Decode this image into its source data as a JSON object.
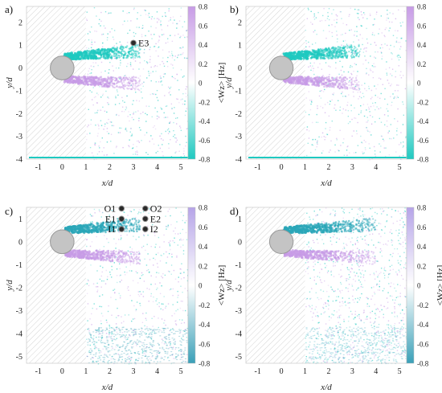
{
  "chart_data": [
    {
      "type": "heatmap",
      "panel_label": "a)",
      "xlabel": "x/d",
      "ylabel": "y/d",
      "xlim": [
        -1.5,
        5.3
      ],
      "ylim": [
        -4,
        2.7
      ],
      "xticks": [
        -1,
        0,
        1,
        2,
        3,
        4,
        5
      ],
      "yticks": [
        -4,
        -3,
        -2,
        -1,
        0,
        1,
        2
      ],
      "colorbar": {
        "label": "<Wz> [Hz]",
        "range": [
          -0.8,
          0.8
        ],
        "ticks": [
          "0.8",
          "0.6",
          "0.4",
          "0.2",
          "0",
          "-0.2",
          "-0.4",
          "-0.6",
          "-0.8"
        ]
      },
      "cylinder": {
        "x": 0,
        "y": 0,
        "radius": 0.5
      },
      "points": [
        {
          "label": "E3",
          "x": 3.0,
          "y": 1.1
        }
      ]
    },
    {
      "type": "heatmap",
      "panel_label": "b)",
      "xlabel": "x/d",
      "ylabel": "y/d",
      "xlim": [
        -1.5,
        5.3
      ],
      "ylim": [
        -4,
        2.7
      ],
      "xticks": [
        -1,
        0,
        1,
        2,
        3,
        4,
        5
      ],
      "yticks": [
        -4,
        -3,
        -2,
        -1,
        0,
        1,
        2
      ],
      "colorbar": {
        "label": "",
        "range": [
          -0.8,
          0.8
        ],
        "ticks": [
          "0.8",
          "0.6",
          "0.4",
          "0.2",
          "0",
          "-0.2",
          "-0.4",
          "-0.6",
          "-0.8"
        ]
      },
      "cylinder": {
        "x": 0,
        "y": 0,
        "radius": 0.5
      },
      "points": []
    },
    {
      "type": "heatmap",
      "panel_label": "c)",
      "xlabel": "x/d",
      "ylabel": "y/d",
      "xlim": [
        -1.5,
        5.3
      ],
      "ylim": [
        -5.3,
        1.5
      ],
      "xticks": [
        -1,
        0,
        1,
        2,
        3,
        4,
        5
      ],
      "yticks": [
        -5,
        -4,
        -3,
        -2,
        -1,
        0,
        1
      ],
      "colorbar": {
        "label": "<Wz> [Hz]",
        "range": [
          -0.8,
          0.8
        ],
        "ticks": [
          "0.8",
          "0.6",
          "0.4",
          "0.2",
          "0",
          "-0.2",
          "-0.4",
          "-0.6",
          "-0.8"
        ]
      },
      "cylinder": {
        "x": 0,
        "y": 0,
        "radius": 0.5
      },
      "points": [
        {
          "label": "O1",
          "x": 2.5,
          "y": 1.45
        },
        {
          "label": "E1",
          "x": 2.5,
          "y": 1.0
        },
        {
          "label": "I1",
          "x": 2.5,
          "y": 0.55
        },
        {
          "label": "O2",
          "x": 3.5,
          "y": 1.45
        },
        {
          "label": "E2",
          "x": 3.5,
          "y": 1.0
        },
        {
          "label": "I2",
          "x": 3.5,
          "y": 0.55
        }
      ]
    },
    {
      "type": "heatmap",
      "panel_label": "d)",
      "xlabel": "x/d",
      "ylabel": "y/d",
      "xlim": [
        -1.5,
        5.3
      ],
      "ylim": [
        -5.3,
        1.5
      ],
      "xticks": [
        -1,
        0,
        1,
        2,
        3,
        4,
        5
      ],
      "yticks": [
        -5,
        -4,
        -3,
        -2,
        -1,
        0,
        1
      ],
      "colorbar": {
        "label": "<Wz> [Hz]",
        "range": [
          -0.8,
          0.8
        ],
        "ticks": [
          "0.8",
          "0.6",
          "0.4",
          "0.2",
          "0",
          "-0.2",
          "-0.4",
          "-0.6",
          "-0.8"
        ]
      },
      "cylinder": {
        "x": 0,
        "y": 0,
        "radius": 0.5
      },
      "points": []
    }
  ],
  "colors": {
    "positive": "#c79be6",
    "negative": "#1fc9c0",
    "neutral": "#ffffff",
    "cylinder": "#c4c4c4",
    "hatch": "#d4d4d4"
  }
}
